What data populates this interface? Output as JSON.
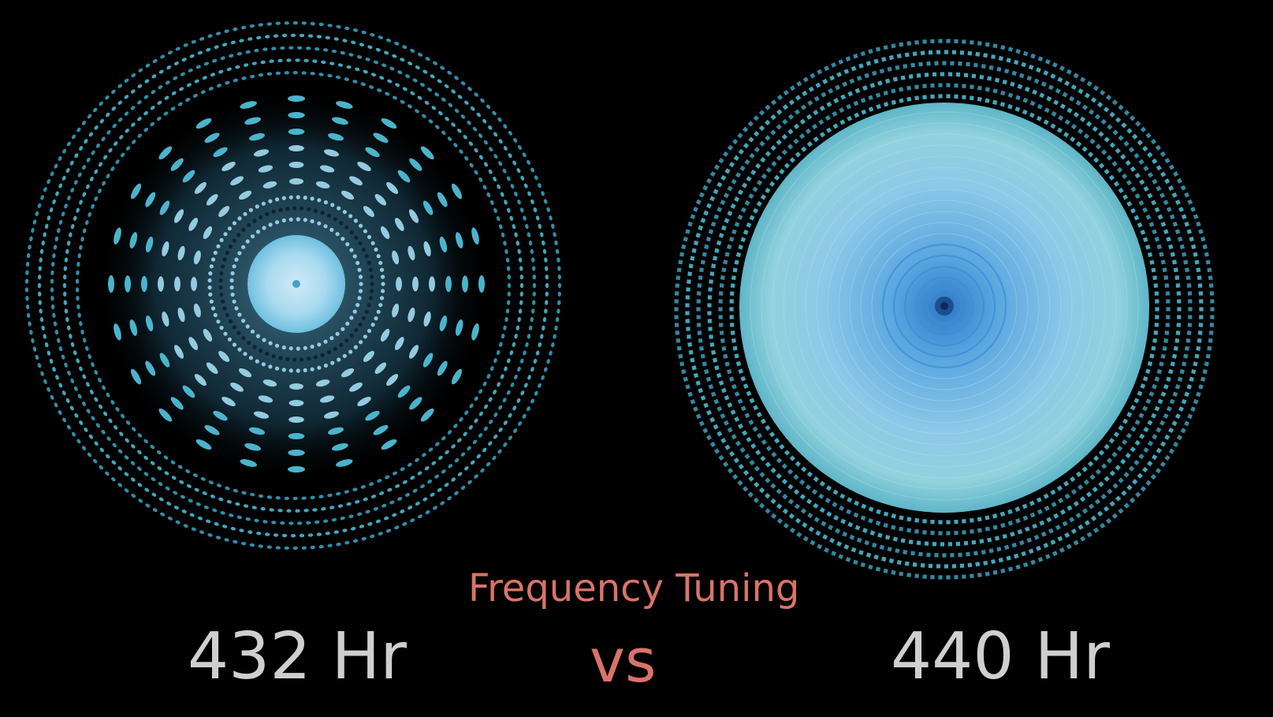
{
  "caption": {
    "title": "Frequency Tuning",
    "left_label": "432 Hr",
    "connector": "vs",
    "right_label": "440 Hr"
  },
  "patterns": [
    {
      "name": "cymatic-432",
      "style": "radial-spokes"
    },
    {
      "name": "cymatic-440",
      "style": "concentric-rings"
    }
  ],
  "colors": {
    "background": "#000000",
    "pattern_cyan": "#4fc3dc",
    "pattern_pale": "#9fd8ee",
    "pattern_blue": "#3b8fd6",
    "title_color": "#d9736a",
    "label_color": "#cfcfcf"
  }
}
